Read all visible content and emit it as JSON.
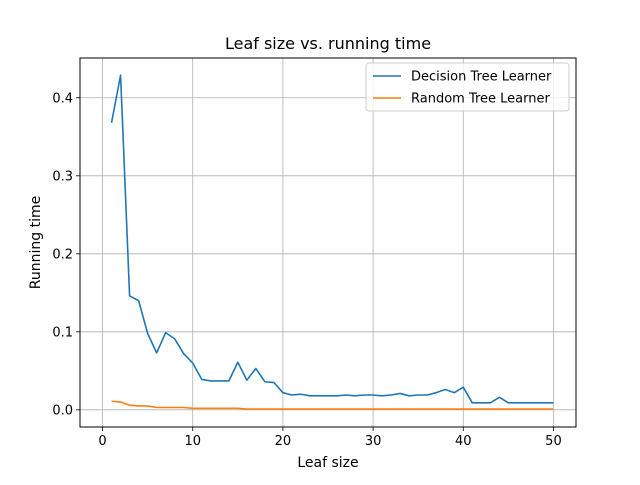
{
  "chart_data": {
    "type": "line",
    "title": "Leaf size vs. running time",
    "xlabel": "Leaf size",
    "ylabel": "Running time",
    "xlim": [
      -2.5,
      52.5
    ],
    "ylim": [
      -0.022,
      0.451
    ],
    "xticks": [
      0,
      10,
      20,
      30,
      40,
      50
    ],
    "xtick_labels": [
      "0",
      "10",
      "20",
      "30",
      "40",
      "50"
    ],
    "yticks": [
      0.0,
      0.1,
      0.2,
      0.3,
      0.4
    ],
    "ytick_labels": [
      "0.0",
      "0.1",
      "0.2",
      "0.3",
      "0.4"
    ],
    "grid": true,
    "legend_position": "top-right",
    "x": [
      1,
      2,
      3,
      4,
      5,
      6,
      7,
      8,
      9,
      10,
      11,
      12,
      13,
      14,
      15,
      16,
      17,
      18,
      19,
      20,
      21,
      22,
      23,
      24,
      25,
      26,
      27,
      28,
      29,
      30,
      31,
      32,
      33,
      34,
      35,
      36,
      37,
      38,
      39,
      40,
      41,
      42,
      43,
      44,
      45,
      46,
      47,
      48,
      49,
      50
    ],
    "series": [
      {
        "name": "Decision Tree Learner",
        "color": "#1f77b4",
        "values": [
          0.368,
          0.429,
          0.146,
          0.14,
          0.098,
          0.073,
          0.099,
          0.091,
          0.072,
          0.06,
          0.039,
          0.037,
          0.037,
          0.037,
          0.061,
          0.038,
          0.053,
          0.036,
          0.035,
          0.022,
          0.019,
          0.02,
          0.018,
          0.018,
          0.018,
          0.018,
          0.019,
          0.018,
          0.019,
          0.019,
          0.018,
          0.019,
          0.021,
          0.018,
          0.019,
          0.019,
          0.022,
          0.026,
          0.022,
          0.029,
          0.009,
          0.009,
          0.009,
          0.016,
          0.009,
          0.009,
          0.009,
          0.009,
          0.009,
          0.009
        ]
      },
      {
        "name": "Random Tree Learner",
        "color": "#ff7f0e",
        "values": [
          0.011,
          0.01,
          0.006,
          0.005,
          0.005,
          0.003,
          0.003,
          0.003,
          0.003,
          0.002,
          0.002,
          0.002,
          0.002,
          0.002,
          0.002,
          0.001,
          0.001,
          0.001,
          0.001,
          0.001,
          0.001,
          0.001,
          0.001,
          0.001,
          0.001,
          0.001,
          0.001,
          0.001,
          0.001,
          0.001,
          0.001,
          0.001,
          0.001,
          0.001,
          0.001,
          0.001,
          0.001,
          0.001,
          0.001,
          0.001,
          0.001,
          0.001,
          0.001,
          0.001,
          0.001,
          0.001,
          0.001,
          0.001,
          0.001,
          0.001
        ]
      }
    ]
  }
}
